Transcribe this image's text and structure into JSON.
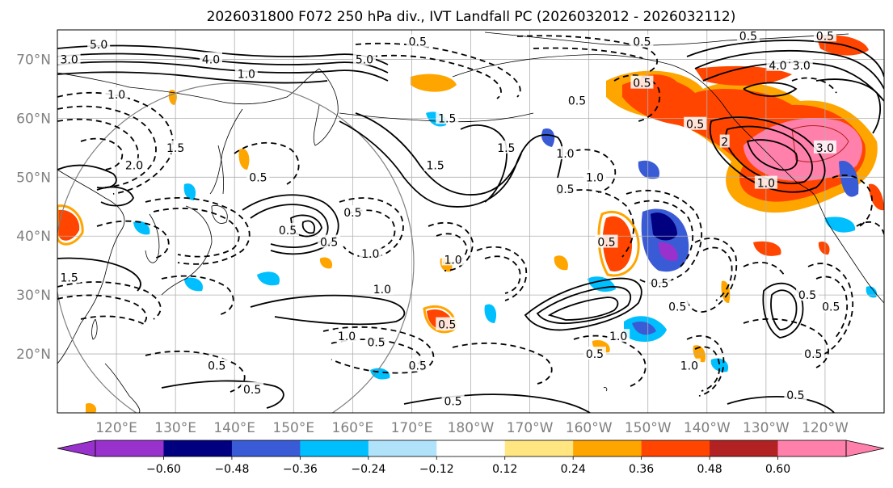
{
  "title": "2026031800 F072 250 hPa div., IVT Landfall PC (2026032012 - 2026032112)",
  "colors": {
    "neg_060": "#9932cc",
    "neg_048": "#000080",
    "neg_036": "#3a5bd6",
    "neg_024": "#00bfff",
    "neg_012": "#b0e2fa",
    "zero": "#ffffff",
    "pos_012": "#ffe680",
    "pos_024": "#ffa500",
    "pos_036": "#ff4500",
    "pos_048": "#b22222",
    "pos_060": "#ff80aa",
    "contour": "#000000",
    "grid": "#b0b0b0",
    "circle": "#808080",
    "coast": "#000000"
  },
  "chart_data": {
    "type": "contour-map",
    "variable": "250 hPa divergence (filled) with IVT Landfall PC contours",
    "lat_range": [
      10,
      75
    ],
    "lon_range": [
      110,
      250
    ],
    "lat_ticks": [
      "20°N",
      "30°N",
      "40°N",
      "50°N",
      "60°N",
      "70°N"
    ],
    "lat_values": [
      20,
      30,
      40,
      50,
      60,
      70
    ],
    "lon_ticks": [
      "120°E",
      "130°E",
      "140°E",
      "150°E",
      "160°E",
      "170°E",
      "180°W",
      "170°W",
      "160°W",
      "150°W",
      "140°W",
      "130°W",
      "120°W"
    ],
    "lon_values": [
      120,
      130,
      140,
      150,
      160,
      170,
      180,
      190,
      200,
      210,
      220,
      230,
      240
    ],
    "colorbar_ticks": [
      "−0.60",
      "−0.48",
      "−0.36",
      "−0.24",
      "−0.12",
      "0.12",
      "0.24",
      "0.36",
      "0.48",
      "0.60"
    ],
    "colorbar_values": [
      -0.6,
      -0.48,
      -0.36,
      -0.24,
      -0.12,
      0.12,
      0.24,
      0.36,
      0.48,
      0.6
    ],
    "contour_levels": [
      -5.0,
      -4.0,
      -3.0,
      -2.0,
      -1.5,
      -1.0,
      -0.5,
      0.5,
      1.0,
      1.5,
      2.0,
      3.0,
      4.0,
      5.0
    ],
    "contour_labels": [
      {
        "text": "5.0",
        "lon": 117,
        "lat": 72.5
      },
      {
        "text": "3.0",
        "lon": 112,
        "lat": 70
      },
      {
        "text": "4.0",
        "lon": 136,
        "lat": 70
      },
      {
        "text": "1.0",
        "lon": 142,
        "lat": 67.5
      },
      {
        "text": "5.0",
        "lon": 162,
        "lat": 70
      },
      {
        "text": "1.0",
        "lon": 120,
        "lat": 64
      },
      {
        "text": "2.0",
        "lon": 123,
        "lat": 52
      },
      {
        "text": "1.5",
        "lon": 130,
        "lat": 55
      },
      {
        "text": "0.5",
        "lon": 144,
        "lat": 50
      },
      {
        "text": "0.5",
        "lon": 149,
        "lat": 41
      },
      {
        "text": "0.5",
        "lon": 156,
        "lat": 39
      },
      {
        "text": "0.5",
        "lon": 160,
        "lat": 44
      },
      {
        "text": "1.0",
        "lon": 163,
        "lat": 37
      },
      {
        "text": "1.0",
        "lon": 177,
        "lat": 36
      },
      {
        "text": "1.0",
        "lon": 165,
        "lat": 31
      },
      {
        "text": "1.0",
        "lon": 159,
        "lat": 23
      },
      {
        "text": "0.5",
        "lon": 164,
        "lat": 22
      },
      {
        "text": "0.5",
        "lon": 137,
        "lat": 18
      },
      {
        "text": "0.5",
        "lon": 143,
        "lat": 14
      },
      {
        "text": "0.5",
        "lon": 171,
        "lat": 18
      },
      {
        "text": "0.5",
        "lon": 177,
        "lat": 12
      },
      {
        "text": "1.5",
        "lon": 174,
        "lat": 52
      },
      {
        "text": "1.5",
        "lon": 186,
        "lat": 55
      },
      {
        "text": "1.0",
        "lon": 196,
        "lat": 54
      },
      {
        "text": "1.0",
        "lon": 201,
        "lat": 50
      },
      {
        "text": "0.5",
        "lon": 196,
        "lat": 48
      },
      {
        "text": "0.5",
        "lon": 176,
        "lat": 25
      },
      {
        "text": "0.5",
        "lon": 201,
        "lat": 20
      },
      {
        "text": "1.0",
        "lon": 205,
        "lat": 23
      },
      {
        "text": "0.5",
        "lon": 212,
        "lat": 32
      },
      {
        "text": "0.5",
        "lon": 215,
        "lat": 28
      },
      {
        "text": "1.0",
        "lon": 217,
        "lat": 18
      },
      {
        "text": "0.5",
        "lon": 235,
        "lat": 13
      },
      {
        "text": "0.5",
        "lon": 238,
        "lat": 20
      },
      {
        "text": "0.5",
        "lon": 237,
        "lat": 30
      },
      {
        "text": "0.5",
        "lon": 241,
        "lat": 28
      },
      {
        "text": "0.5",
        "lon": 203,
        "lat": 39
      },
      {
        "text": "0.5",
        "lon": 198,
        "lat": 63
      },
      {
        "text": "0.5",
        "lon": 209,
        "lat": 66
      },
      {
        "text": "0.5",
        "lon": 218,
        "lat": 59
      },
      {
        "text": "2",
        "lon": 223,
        "lat": 56
      },
      {
        "text": "3.0",
        "lon": 240,
        "lat": 55
      },
      {
        "text": "4.0",
        "lon": 232,
        "lat": 69
      },
      {
        "text": "3.0",
        "lon": 236,
        "lat": 69
      },
      {
        "text": "0.5",
        "lon": 227,
        "lat": 74
      },
      {
        "text": "0.5",
        "lon": 240,
        "lat": 74
      },
      {
        "text": "0.5",
        "lon": 171,
        "lat": 73
      },
      {
        "text": "0.5",
        "lon": 209,
        "lat": 73
      },
      {
        "text": "1.0",
        "lon": 230,
        "lat": 49
      },
      {
        "text": "1.5",
        "lon": 176,
        "lat": 60
      },
      {
        "text": "1.5",
        "lon": 112,
        "lat": 33
      }
    ]
  }
}
